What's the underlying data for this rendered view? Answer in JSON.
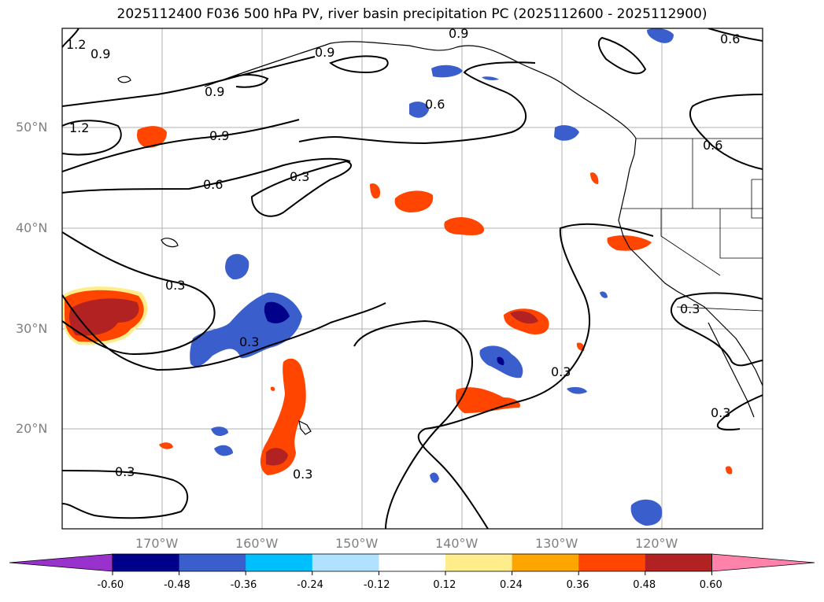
{
  "title": "2025112400 F036 500 hPa PV, river basin precipitation PC (2025112600 - 2025112900)",
  "lat_labels": [
    "50°N",
    "40°N",
    "30°N",
    "20°N"
  ],
  "lon_labels": [
    "170°W",
    "160°W",
    "150°W",
    "140°W",
    "130°W",
    "120°W"
  ],
  "contour_labels": [
    "1.2",
    "0.9",
    "0.9",
    "0.9",
    "1.2",
    "0.9",
    "0.6",
    "0.3",
    "0.3",
    "0.3",
    "0.3",
    "0.3",
    "0.3",
    "0.3",
    "0.9",
    "0.6",
    "0.6",
    "0.6",
    "0.3"
  ],
  "colorbar": {
    "ticks": [
      "-0.60",
      "-0.48",
      "-0.36",
      "-0.24",
      "-0.12",
      "0.12",
      "0.24",
      "0.36",
      "0.48",
      "0.60"
    ],
    "colors": [
      "#9932cc",
      "#00008b",
      "#3a5fcd",
      "#00bfff",
      "#b0e2ff",
      "#ffffff",
      "#ffec8b",
      "#ffa500",
      "#ff4500",
      "#b22222",
      "#ff82ab"
    ]
  }
}
